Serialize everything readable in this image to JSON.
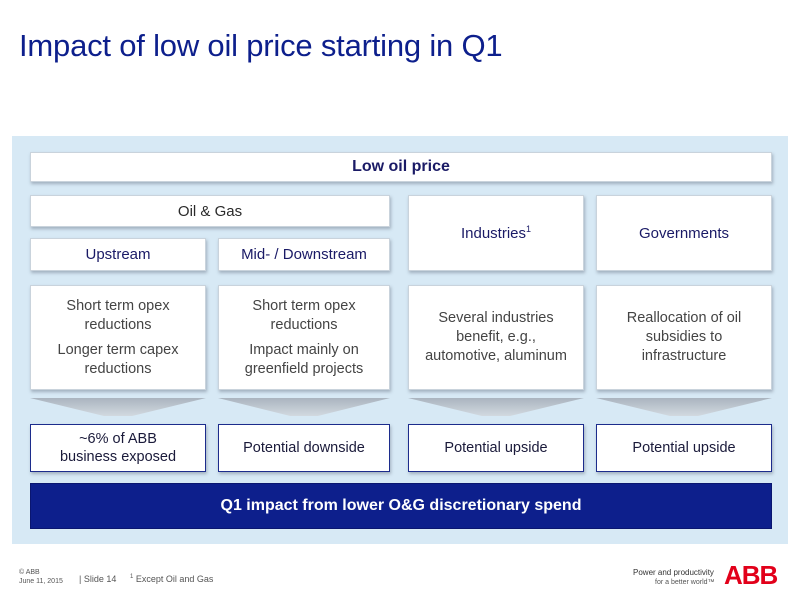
{
  "title": "Impact of low oil price starting in Q1",
  "top_bar": "Low oil price",
  "oil_gas": {
    "label": "Oil & Gas",
    "upstream": {
      "label": "Upstream",
      "effects": [
        "Short term opex reductions",
        "Longer term capex reductions"
      ],
      "outcome": "~6% of ABB business exposed"
    },
    "midstream": {
      "label": "Mid- / Downstream",
      "effects": [
        "Short term opex reductions",
        "Impact mainly on greenfield projects"
      ],
      "outcome": "Potential downside"
    }
  },
  "industries": {
    "label": "Industries",
    "footnote_mark": "1",
    "effect": "Several industries benefit, e.g., automotive, aluminum",
    "outcome": "Potential upside"
  },
  "governments": {
    "label": "Governments",
    "effect": "Reallocation of oil subsidies to infrastructure",
    "outcome": "Potential upside"
  },
  "bottom_bar": "Q1 impact from lower O&G discretionary spend",
  "footer": {
    "copyright": "© ABB",
    "date": "June 11, 2015",
    "slide": "| Slide 14",
    "footnote_mark": "1",
    "footnote": "Except Oil and Gas",
    "tagline_1": "Power and productivity",
    "tagline_2": "for a better world™",
    "logo": "ABB"
  },
  "colors": {
    "brand_blue": "#0d1f8c",
    "panel_bg": "#d7e9f5",
    "abb_red": "#e2001a"
  }
}
